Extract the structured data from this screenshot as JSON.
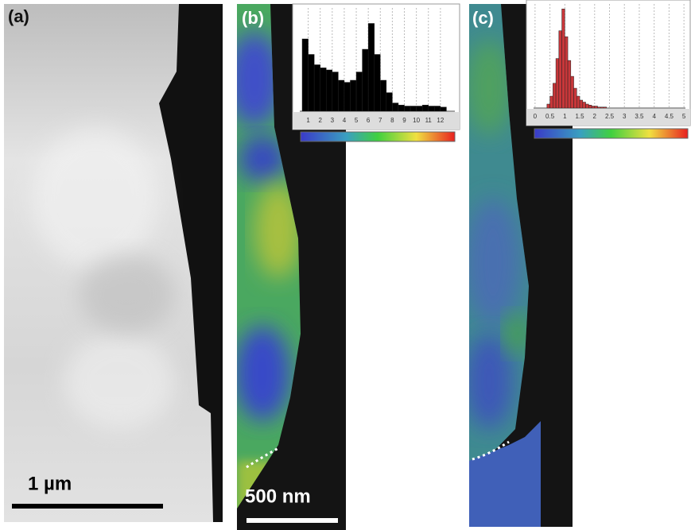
{
  "panels": [
    {
      "label": "(a)",
      "scale_bar": "1 µm"
    },
    {
      "label": "(b)",
      "scale_bar": "500 nm",
      "histogram": {
        "type": "histogram",
        "color": "#000000",
        "bins": [
          0.5,
          1,
          1.5,
          2,
          2.5,
          3,
          3.5,
          4,
          4.5,
          5,
          5.5,
          6,
          6.5,
          7,
          7.5,
          8,
          8.5,
          9,
          9.5,
          10,
          10.5,
          11,
          11.5,
          12,
          12.5
        ],
        "values": [
          70,
          55,
          45,
          42,
          40,
          38,
          30,
          28,
          30,
          38,
          60,
          85,
          55,
          30,
          18,
          8,
          6,
          5,
          5,
          5,
          6,
          5,
          5,
          4
        ],
        "xlim": [
          0.3,
          13.2
        ],
        "ylim": [
          0,
          100
        ],
        "xticks": [
          1,
          2,
          3,
          4,
          5,
          6,
          7,
          8,
          9,
          10,
          11,
          12
        ],
        "grid": true
      }
    },
    {
      "label": "(c)",
      "histogram": {
        "type": "histogram",
        "color": "#c8373a",
        "bins": [
          0.4,
          0.5,
          0.6,
          0.7,
          0.8,
          0.9,
          1.0,
          1.1,
          1.2,
          1.3,
          1.4,
          1.5,
          1.6,
          1.7,
          1.8,
          1.9,
          2.0,
          2.1,
          2.2,
          2.3,
          2.4
        ],
        "values": [
          4,
          12,
          25,
          50,
          78,
          100,
          72,
          48,
          32,
          20,
          12,
          8,
          6,
          4,
          3,
          2,
          2,
          1,
          1,
          1
        ],
        "xlim": [
          -0.05,
          5.05
        ],
        "ylim": [
          0,
          105
        ],
        "xticks": [
          0,
          0.5,
          1,
          1.5,
          2,
          2.5,
          3,
          3.5,
          4,
          4.5,
          5
        ],
        "grid": true
      }
    }
  ]
}
